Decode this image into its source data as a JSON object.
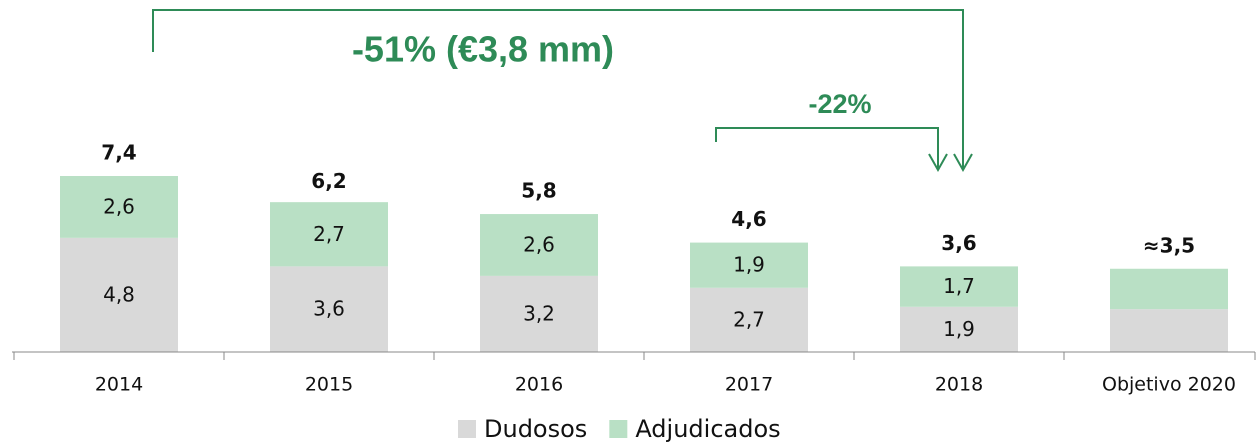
{
  "chart_data": {
    "type": "stacked_bar",
    "categories": [
      "2014",
      "2015",
      "2016",
      "2017",
      "2018",
      "Objetivo 2020"
    ],
    "series": [
      {
        "name": "Dudosos",
        "color": "#d9d9d9",
        "values": [
          4.8,
          3.6,
          3.2,
          2.7,
          1.9,
          1.8
        ],
        "value_labels": [
          "4,8",
          "3,6",
          "3,2",
          "2,7",
          "1,9",
          null
        ]
      },
      {
        "name": "Adjudicados",
        "color": "#b9e0c5",
        "values": [
          2.6,
          2.7,
          2.6,
          1.9,
          1.7,
          1.7
        ],
        "value_labels": [
          "2,6",
          "2,7",
          "2,6",
          "1,9",
          "1,7",
          null
        ]
      }
    ],
    "totals": [
      7.4,
      6.2,
      5.8,
      4.6,
      3.6,
      3.5
    ],
    "total_labels": [
      "7,4",
      "6,2",
      "5,8",
      "4,6",
      "3,6",
      "≈3,5"
    ],
    "annotations": [
      "-51% (€3,8 mm)",
      "-22%"
    ],
    "legend": "bottom"
  }
}
